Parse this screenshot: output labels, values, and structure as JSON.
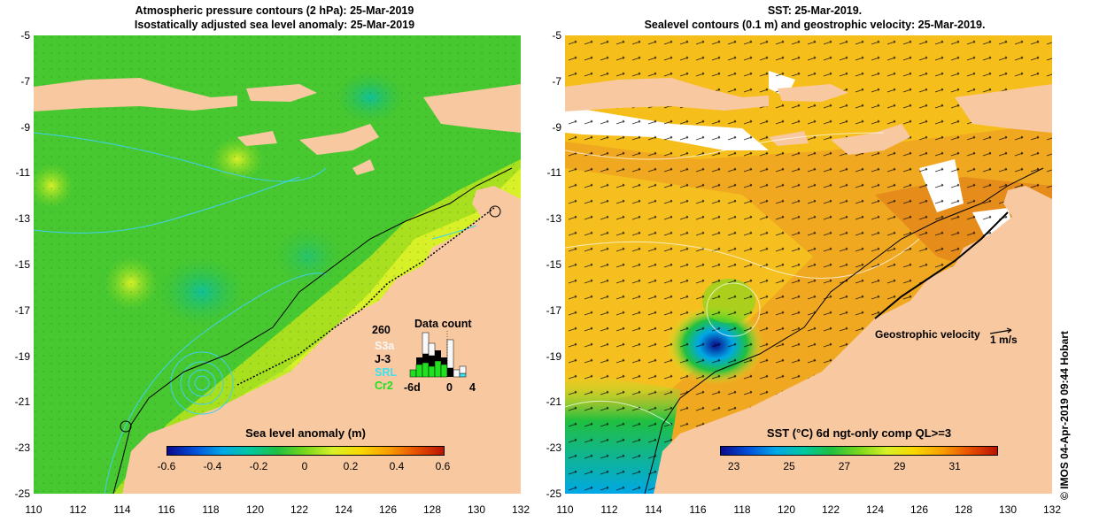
{
  "left_panel": {
    "title_line1": "Atmospheric pressure contours (2 hPa): 25-Mar-2019",
    "title_line2": "Isostatically adjusted sea level anomaly: 25-Mar-2019",
    "colorbar": {
      "title": "Sea level anomaly (m)",
      "ticks": [
        "-0.6",
        "-0.4",
        "-0.2",
        "0",
        "0.2",
        "0.4",
        "0.6"
      ],
      "colors": [
        "#0a0a8c",
        "#0050dc",
        "#00a8e6",
        "#00c8a0",
        "#20c040",
        "#78d81c",
        "#d8f028",
        "#f8d800",
        "#f8a000",
        "#e85000",
        "#b81400"
      ]
    },
    "data_count": {
      "title": "Data count",
      "max_label": "260",
      "x_labels": [
        "-6d",
        "0",
        "4"
      ],
      "legend": [
        {
          "label": "S3a",
          "color": "#f8f8f8"
        },
        {
          "label": "J-3",
          "color": "#000000"
        },
        {
          "label": "SRL",
          "color": "#40e0f0"
        },
        {
          "label": "Cr2",
          "color": "#20e020"
        }
      ]
    }
  },
  "right_panel": {
    "title_line1": "SST: 25-Mar-2019.",
    "title_line2": "Sealevel contours (0.1 m) and geostrophic velocity: 25-Mar-2019.",
    "colorbar": {
      "title": "SST (°C) 6d ngt-only comp QL>=3",
      "ticks": [
        "23",
        "25",
        "27",
        "29",
        "31"
      ],
      "colors": [
        "#0a0a8c",
        "#0050dc",
        "#00a8e6",
        "#00c8a0",
        "#20c040",
        "#78d81c",
        "#d8f028",
        "#f8d800",
        "#f8a000",
        "#e85000",
        "#b81400"
      ]
    },
    "velocity_label": "Geostrophic velocity",
    "velocity_scale": "1 m/s"
  },
  "axes": {
    "lat_ticks": [
      "-5",
      "-7",
      "-9",
      "-11",
      "-13",
      "-15",
      "-17",
      "-19",
      "-21",
      "-23",
      "-25"
    ],
    "lon_ticks": [
      "110",
      "112",
      "114",
      "116",
      "118",
      "120",
      "122",
      "124",
      "126",
      "128",
      "130",
      "132"
    ]
  },
  "credit": "© IMOS 04-Apr-2019 09:44 Hobart",
  "colors": {
    "land": "#f8c8a0",
    "ocean_green": "#40c830",
    "sst_orange": "#f0a020"
  }
}
